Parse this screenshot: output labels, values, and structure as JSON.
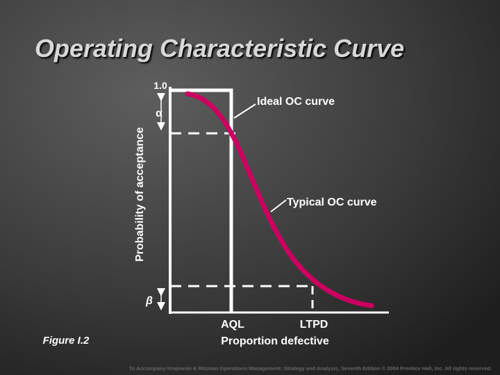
{
  "title": "Operating Characteristic Curve",
  "figure_label": "Figure I.2",
  "axis": {
    "y_label": "Probability of acceptance",
    "y_max_label": "1.0",
    "x_label": "Proportion defective",
    "aql": "AQL",
    "ltpd": "LTPD"
  },
  "annotations": {
    "alpha": "α",
    "beta": "β",
    "ideal": "Ideal OC curve",
    "typical": "Typical OC curve"
  },
  "footer": "To Accompany Krajewski & Ritzman Operations Management: Strategy and Analysis, Seventh Edition © 2004 Prentice Hall, Inc. All rights reserved."
}
